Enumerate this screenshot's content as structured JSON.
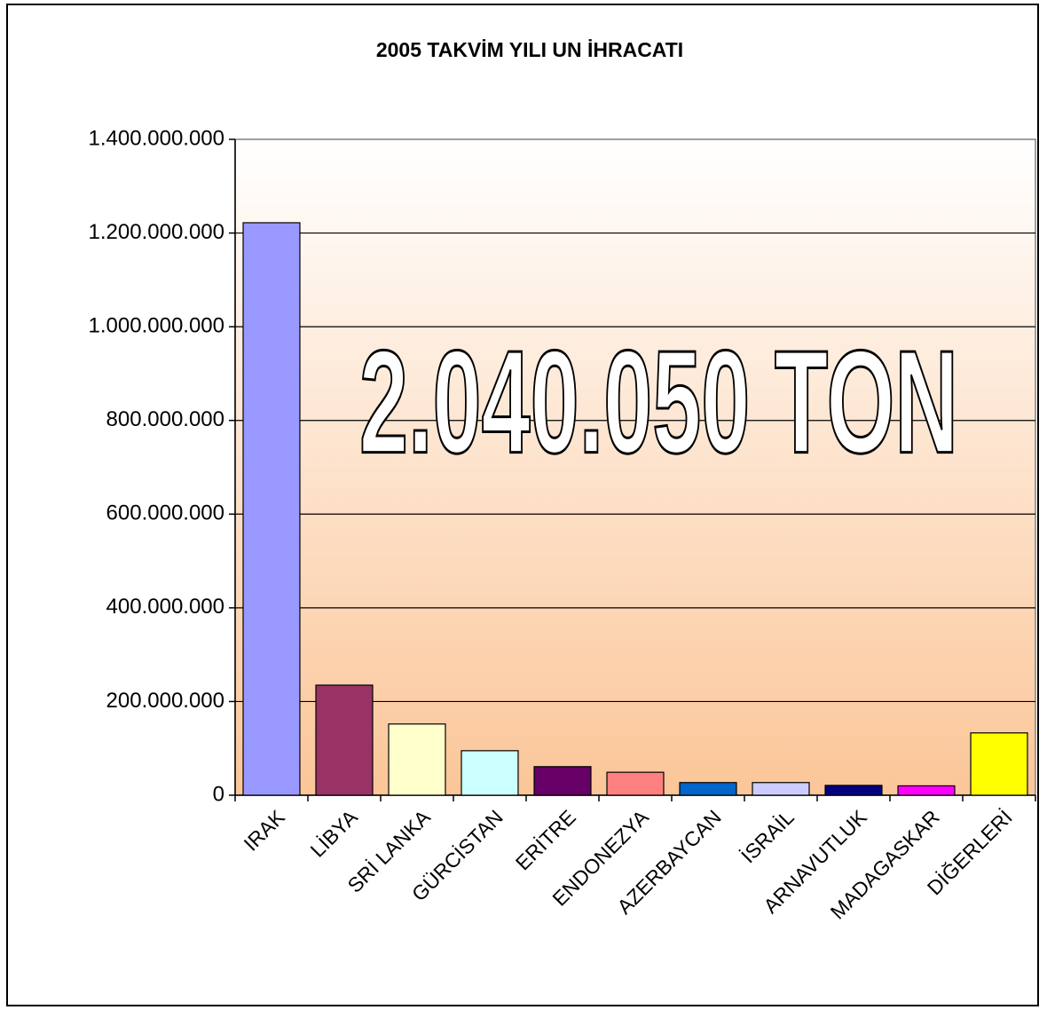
{
  "chart_data": {
    "type": "bar",
    "title": "2005 TAKVİM YILI UN İHRACATI",
    "annotation": "2.040.050 TON",
    "categories": [
      "IRAK",
      "LİBYA",
      "SRİ LANKA",
      "GÜRCİSTAN",
      "ERİTRE",
      "ENDONEZYA",
      "AZERBAYCAN",
      "İSRAİL",
      "ARNAVUTLUK",
      "MADAGASKAR",
      "DİĞERLERİ"
    ],
    "values": [
      1222000000,
      235000000,
      152000000,
      95000000,
      61000000,
      49000000,
      27000000,
      27000000,
      21000000,
      20000000,
      133000000
    ],
    "colors": [
      "#9999ff",
      "#993366",
      "#ffffcc",
      "#ccffff",
      "#660066",
      "#ff8080",
      "#0066cc",
      "#ccccff",
      "#000080",
      "#ff00ff",
      "#ffff00"
    ],
    "ylim": [
      0,
      1400000000
    ],
    "yticks": [
      0,
      {
        "value": 200000000,
        "label": "200.000.000"
      },
      {
        "value": 400000000,
        "label": "400.000.000"
      },
      {
        "value": 600000000,
        "label": "600.000.000"
      },
      {
        "value": 800000000,
        "label": "800.000.000"
      },
      {
        "value": 1000000000,
        "label": "1.000.000.000"
      },
      {
        "value": 1200000000,
        "label": "1.200.000.000"
      },
      {
        "value": 1400000000,
        "label": "1.400.000.000"
      }
    ],
    "grid": true
  }
}
